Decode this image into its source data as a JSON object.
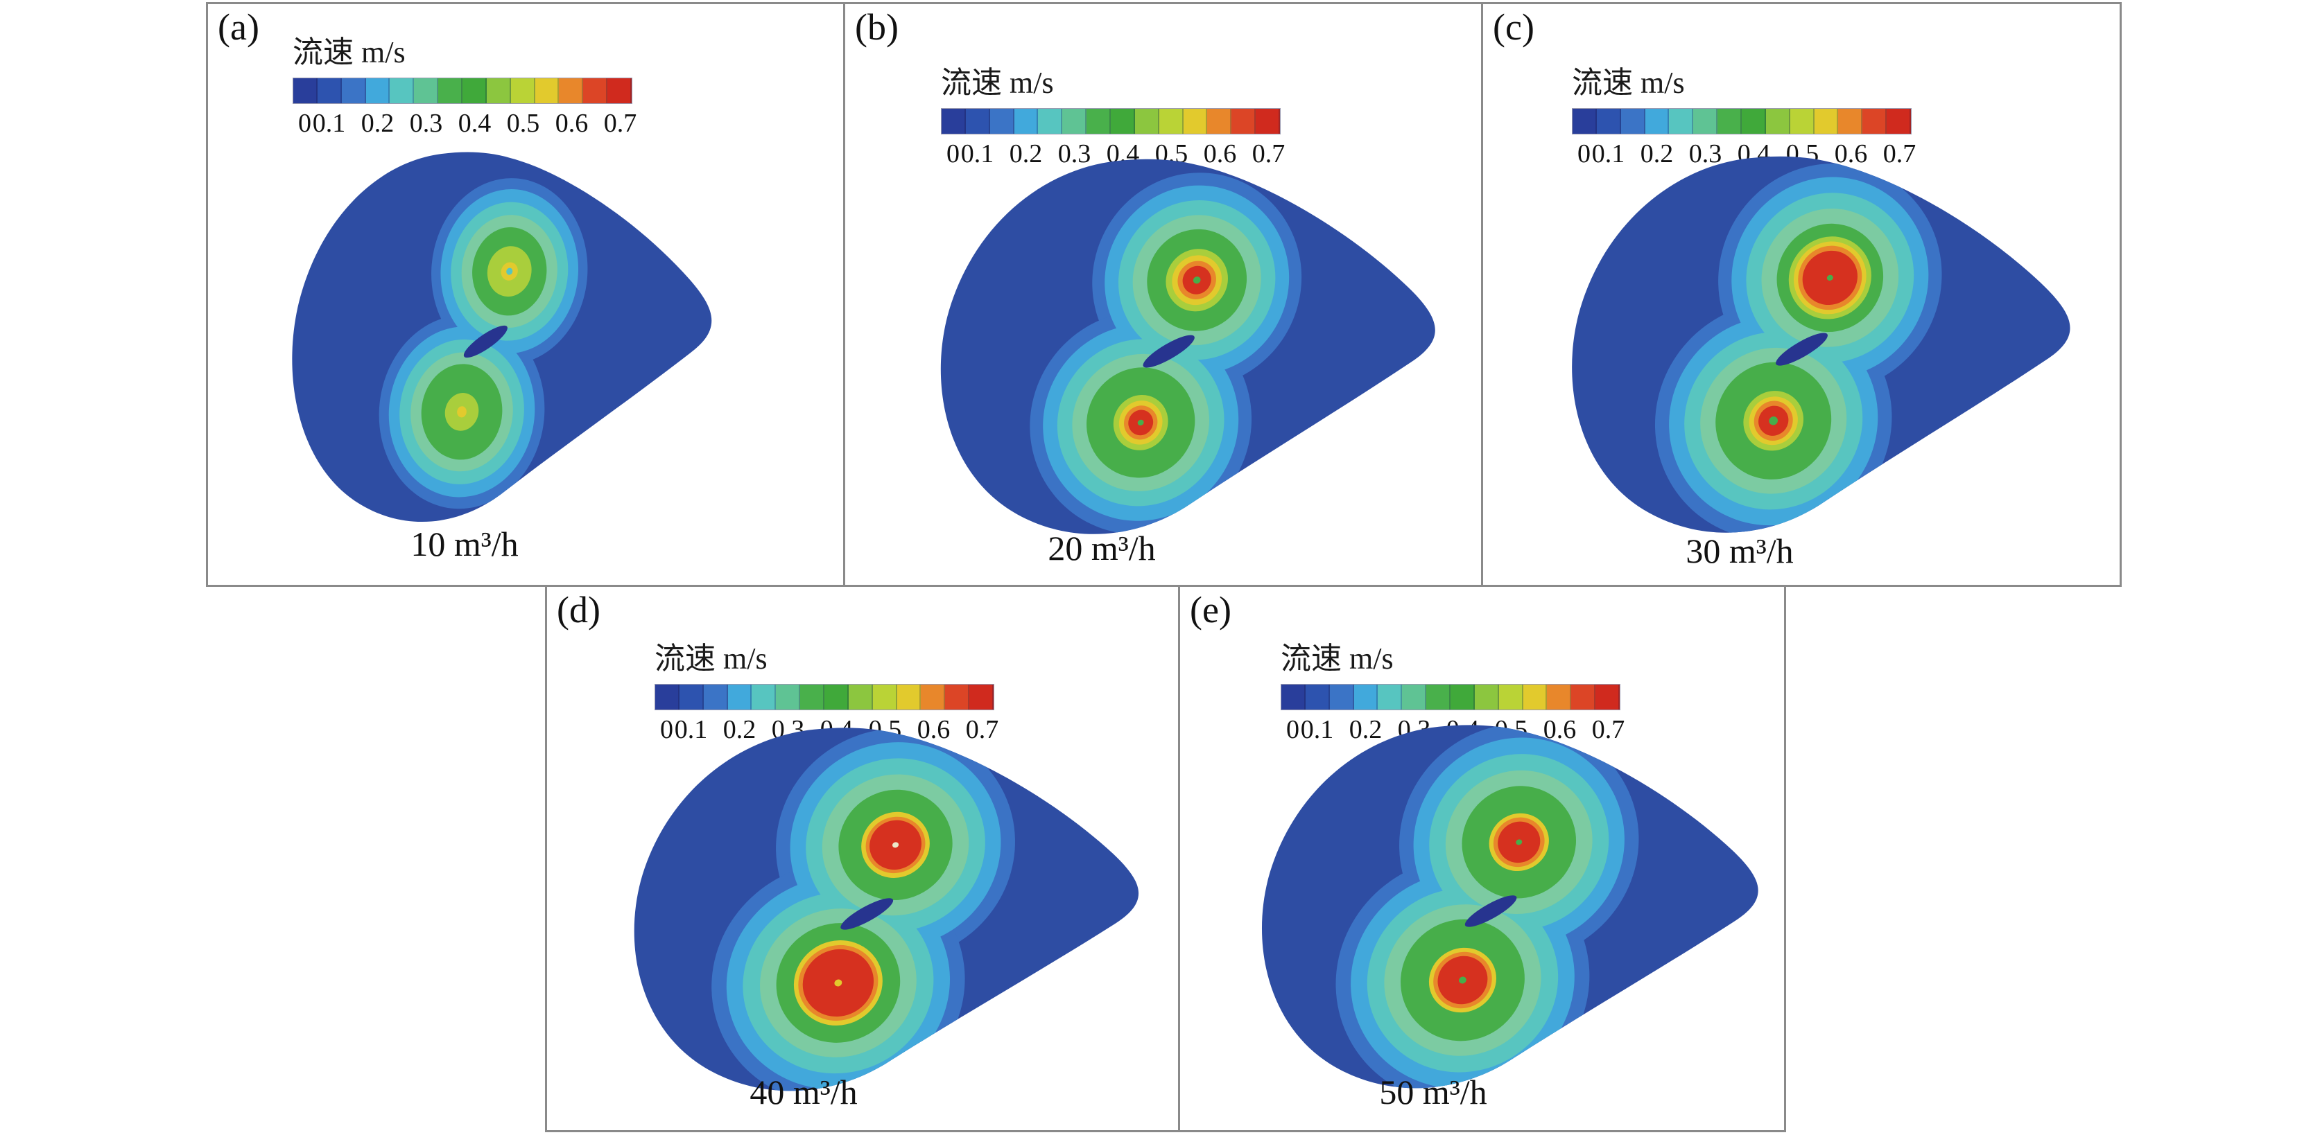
{
  "figure": {
    "background": "#ffffff",
    "panel_border_color": "#8a8a8a",
    "colorbar": {
      "title": "流速 m/s",
      "units": "m/s",
      "range_min": 0,
      "range_max": 0.7,
      "ticks": [
        "0",
        "0.1",
        "0.2",
        "0.3",
        "0.4",
        "0.5",
        "0.6",
        "0.7"
      ],
      "segments": [
        "#293e9b",
        "#2d53af",
        "#3b74c6",
        "#41a9dc",
        "#57c5c0",
        "#5fc394",
        "#49b04b",
        "#40a93a",
        "#8cc63f",
        "#bad336",
        "#e2ca2d",
        "#e8872b",
        "#dc4526",
        "#d02a1e"
      ]
    },
    "palette": {
      "body": "#2e4da3",
      "blue2": "#3b73c5",
      "sky": "#42a8db",
      "teal": "#58c5c0",
      "pale": "#7ccba2",
      "green": "#47ae4a",
      "ltgreen": "#a9ce3c",
      "yellow": "#e2ca2d",
      "orange": "#e8872b",
      "red": "#d6311f",
      "pale_dot": "#ece9c9",
      "sliver": "#27348f"
    },
    "panels": [
      {
        "id": "a",
        "label": "(a)",
        "caption": "10 m³/h"
      },
      {
        "id": "b",
        "label": "(b)",
        "caption": "20 m³/h"
      },
      {
        "id": "c",
        "label": "(c)",
        "caption": "30 m³/h"
      },
      {
        "id": "d",
        "label": "(d)",
        "caption": "40 m³/h"
      },
      {
        "id": "e",
        "label": "(e)",
        "caption": "50 m³/h"
      }
    ]
  },
  "chart_data": [
    {
      "type": "heatmap",
      "panel_label": "(a)",
      "title": "10 m³/h",
      "flow_rate_m3_per_h": 10,
      "colorbar_title": "流速 m/s",
      "value_units": "m/s",
      "value_range": [
        0,
        0.7
      ],
      "colorbar_ticks": [
        0,
        0.1,
        0.2,
        0.3,
        0.4,
        0.5,
        0.6,
        0.7
      ],
      "vortex_cores": 2,
      "peak_velocity_upper_core_ms": 0.55,
      "peak_velocity_lower_core_ms": 0.5,
      "notes": "teardrop cross-section; two green vortex cores with small yellow-green centers, no red zone"
    },
    {
      "type": "heatmap",
      "panel_label": "(b)",
      "title": "20 m³/h",
      "flow_rate_m3_per_h": 20,
      "colorbar_title": "流速 m/s",
      "value_units": "m/s",
      "value_range": [
        0,
        0.7
      ],
      "colorbar_ticks": [
        0,
        0.1,
        0.2,
        0.3,
        0.4,
        0.5,
        0.6,
        0.7
      ],
      "vortex_cores": 2,
      "peak_velocity_upper_core_ms": 0.7,
      "peak_velocity_lower_core_ms": 0.7,
      "notes": "two small red cores ringed by yellow and orange, tiny green dot at each core center"
    },
    {
      "type": "heatmap",
      "panel_label": "(c)",
      "title": "30 m³/h",
      "flow_rate_m3_per_h": 30,
      "colorbar_title": "流速 m/s",
      "value_units": "m/s",
      "value_range": [
        0,
        0.7
      ],
      "colorbar_ticks": [
        0,
        0.1,
        0.2,
        0.3,
        0.4,
        0.5,
        0.6,
        0.7
      ],
      "vortex_cores": 2,
      "peak_velocity_upper_core_ms": 0.7,
      "peak_velocity_lower_core_ms": 0.7,
      "notes": "upper red core noticeably enlarged, lower red core smaller with green center"
    },
    {
      "type": "heatmap",
      "panel_label": "(d)",
      "title": "40 m³/h",
      "flow_rate_m3_per_h": 40,
      "colorbar_title": "流速 m/s",
      "value_units": "m/s",
      "value_range": [
        0,
        0.7
      ],
      "colorbar_ticks": [
        0,
        0.1,
        0.2,
        0.3,
        0.4,
        0.5,
        0.6,
        0.7
      ],
      "vortex_cores": 2,
      "peak_velocity_upper_core_ms": 0.7,
      "peak_velocity_lower_core_ms": 0.7,
      "notes": "largest red high-velocity zones; lower core dominant, broad green surrounding region"
    },
    {
      "type": "heatmap",
      "panel_label": "(e)",
      "title": "50 m³/h",
      "flow_rate_m3_per_h": 50,
      "colorbar_title": "流速 m/s",
      "value_units": "m/s",
      "value_range": [
        0,
        0.7
      ],
      "colorbar_ticks": [
        0,
        0.1,
        0.2,
        0.3,
        0.4,
        0.5,
        0.6,
        0.7
      ],
      "vortex_cores": 2,
      "peak_velocity_upper_core_ms": 0.7,
      "peak_velocity_lower_core_ms": 0.7,
      "notes": "broad merged green region with two moderate red cores, each with a green center dot"
    }
  ]
}
